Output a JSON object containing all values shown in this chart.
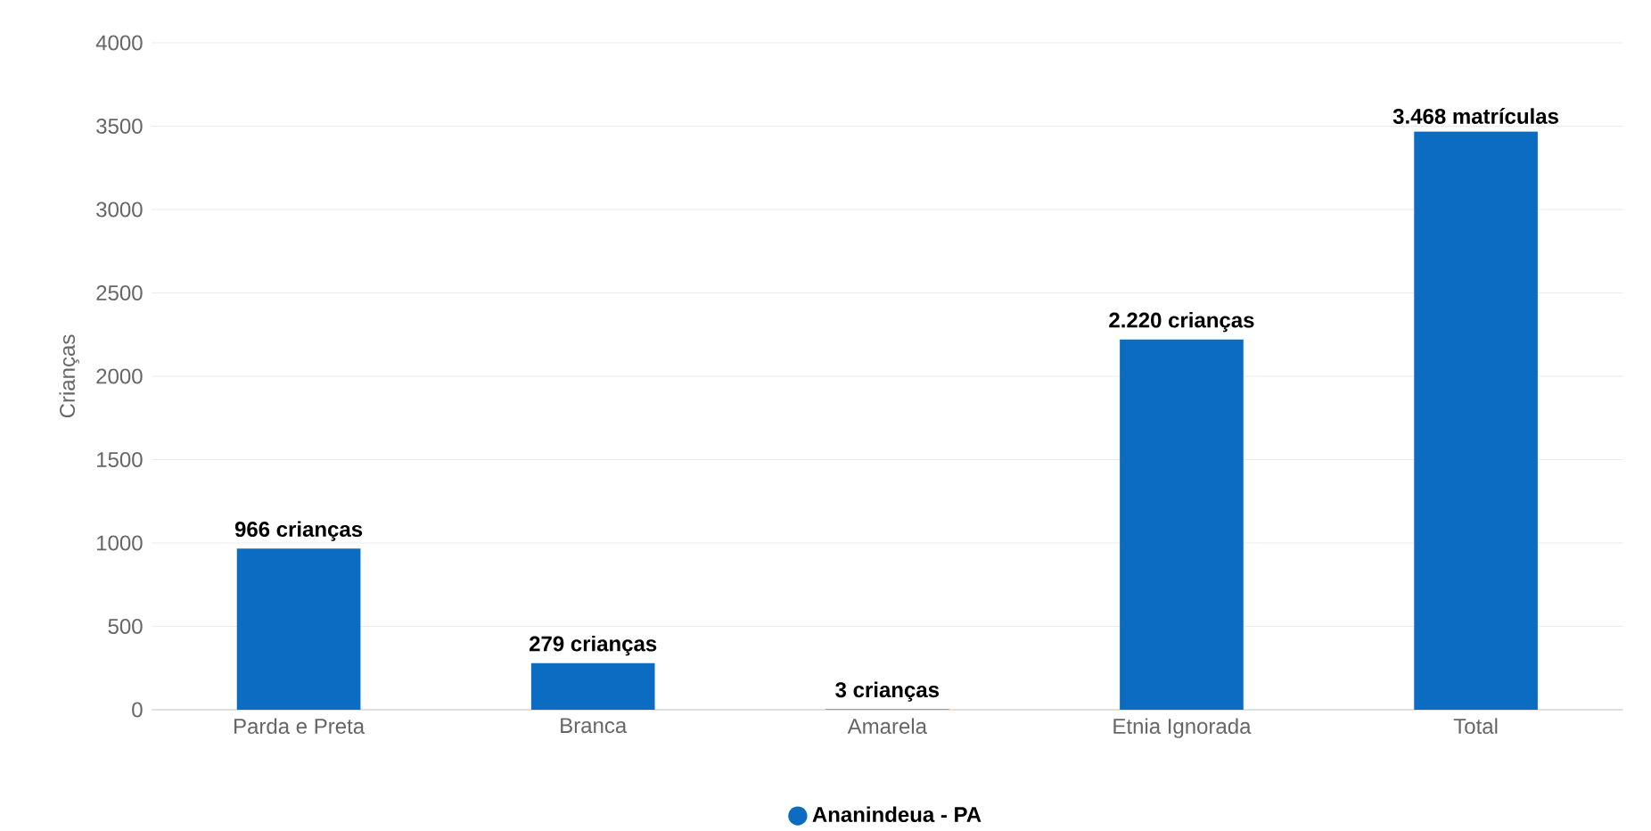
{
  "chart_data": {
    "type": "bar",
    "ylabel": "Crianças",
    "categories": [
      "Parda e Preta",
      "Branca",
      "Amarela",
      "Etnia Ignorada",
      "Total"
    ],
    "series": [
      {
        "name": "Ananindeua - PA",
        "color": "#0b6cc2",
        "values": [
          966,
          279,
          3,
          2220,
          3468
        ],
        "value_labels": [
          "966 crianças",
          "279 crianças",
          "3 crianças",
          "2.220 crianças",
          "3.468 matrículas"
        ]
      }
    ],
    "ylim": [
      0,
      4000
    ],
    "yticks": [
      0,
      500,
      1000,
      1500,
      2000,
      2500,
      3000,
      3500,
      4000
    ],
    "grid": "y",
    "legend": "bottom"
  }
}
